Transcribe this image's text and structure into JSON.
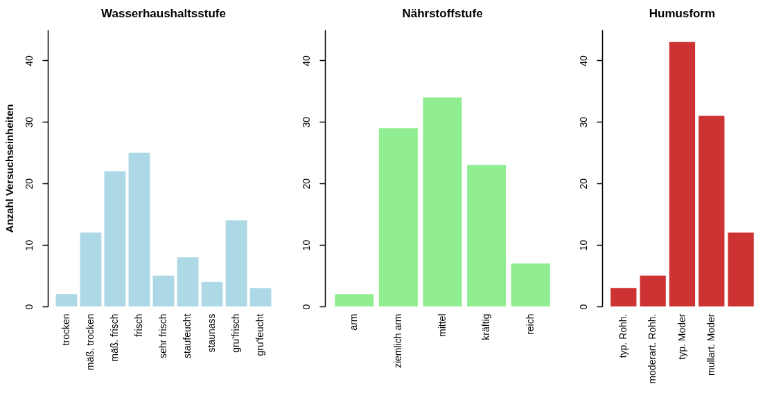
{
  "chart_data": [
    {
      "type": "bar",
      "title": "Wasserhaushaltsstufe",
      "ylabel": "Anzahl Versuchseinheiten",
      "categories": [
        "trocken",
        "mäß. trocken",
        "mäß. frisch",
        "frisch",
        "sehr frisch",
        "staufeucht",
        "staunass",
        "gru'frisch",
        "gru'feucht"
      ],
      "values": [
        2,
        12,
        22,
        25,
        5,
        8,
        4,
        14,
        3
      ],
      "color": "#add8e6",
      "ylim": [
        0,
        45
      ],
      "yticks": [
        0,
        10,
        20,
        30,
        40
      ],
      "grid": false
    },
    {
      "type": "bar",
      "title": "Nährstoffstufe",
      "categories": [
        "arm",
        "ziemlich arm",
        "mittel",
        "kräftig",
        "reich"
      ],
      "values": [
        2,
        29,
        34,
        23,
        7
      ],
      "color": "#90ee90",
      "ylim": [
        0,
        45
      ],
      "yticks": [
        0,
        10,
        20,
        30,
        40
      ],
      "grid": false
    },
    {
      "type": "bar",
      "title": "Humusform",
      "categories": [
        "typ. Rohh.",
        "moderart. Rohh.",
        "typ. Moder",
        "mullart. Moder",
        null
      ],
      "values": [
        3,
        5,
        43,
        31,
        12
      ],
      "color": "#cd3333",
      "ylim": [
        0,
        45
      ],
      "yticks": [
        0,
        10,
        20,
        30,
        40
      ],
      "grid": false
    }
  ]
}
